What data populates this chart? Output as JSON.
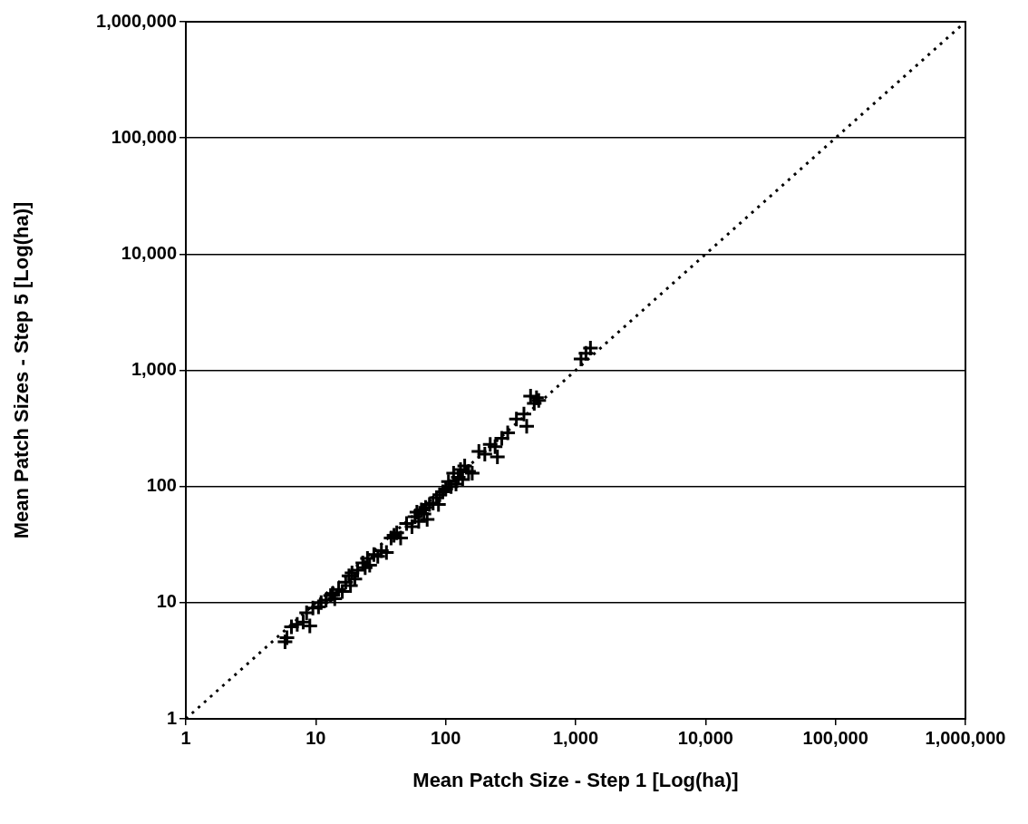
{
  "chart_data": {
    "type": "scatter",
    "xlabel": "Mean Patch Size - Step 1 [Log(ha)]",
    "ylabel": "Mean Patch Sizes - Step 5 [Log(ha)]",
    "log": "xy",
    "grid": "y",
    "marker": "cross",
    "xlim": [
      1,
      1000000
    ],
    "ylim": [
      1,
      1000000
    ],
    "xticks": [
      1,
      10,
      100,
      {
        "value": 1000,
        "label": "1,000"
      },
      {
        "value": 10000,
        "label": "10,000"
      },
      {
        "value": 100000,
        "label": "100,000"
      },
      {
        "value": 1000000,
        "label": "1,000,000"
      }
    ],
    "yticks": [
      1,
      10,
      100,
      {
        "value": 1000,
        "label": "1,000"
      },
      {
        "value": 10000,
        "label": "10,000"
      },
      {
        "value": 100000,
        "label": "100,000"
      },
      {
        "value": 1000000,
        "label": "1,000,000"
      }
    ],
    "series": [
      {
        "type": "scatter",
        "color": "#000000",
        "x": [
          5.8,
          6,
          6.5,
          7.2,
          8,
          8.5,
          9,
          9.5,
          10.5,
          11,
          12,
          13,
          13.5,
          14,
          15,
          16,
          17,
          18,
          18.5,
          19,
          20,
          21,
          23,
          24,
          25,
          26,
          28,
          30,
          32,
          35,
          38,
          40,
          42,
          45,
          50,
          55,
          58,
          60,
          62,
          65,
          68,
          70,
          72,
          75,
          80,
          85,
          88,
          90,
          95,
          100,
          105,
          110,
          115,
          120,
          125,
          130,
          135,
          140,
          150,
          160,
          180,
          200,
          220,
          240,
          250,
          270,
          300,
          350,
          400,
          420,
          450,
          480,
          500,
          520,
          1100,
          1200,
          1300
        ],
        "values": [
          4.6,
          5,
          6.2,
          6.5,
          6.8,
          8.2,
          6.3,
          9,
          9.2,
          10,
          10.5,
          11.5,
          12,
          10.8,
          13,
          12.5,
          15,
          17,
          14,
          18,
          16,
          19,
          22,
          20,
          24,
          21,
          26,
          25,
          28,
          27,
          36,
          38,
          40,
          36,
          48,
          45,
          55,
          60,
          50,
          63,
          58,
          66,
          52,
          70,
          72,
          80,
          70,
          85,
          90,
          95,
          110,
          100,
          130,
          105,
          120,
          140,
          115,
          150,
          135,
          130,
          200,
          190,
          230,
          220,
          180,
          260,
          290,
          380,
          420,
          330,
          600,
          520,
          580,
          550,
          1250,
          1400,
          1550
        ]
      },
      {
        "type": "line",
        "color": "#000000",
        "marker": "none",
        "line_style": "dotted",
        "x": [
          1,
          1000000
        ],
        "values": [
          1,
          1000000
        ]
      }
    ]
  }
}
